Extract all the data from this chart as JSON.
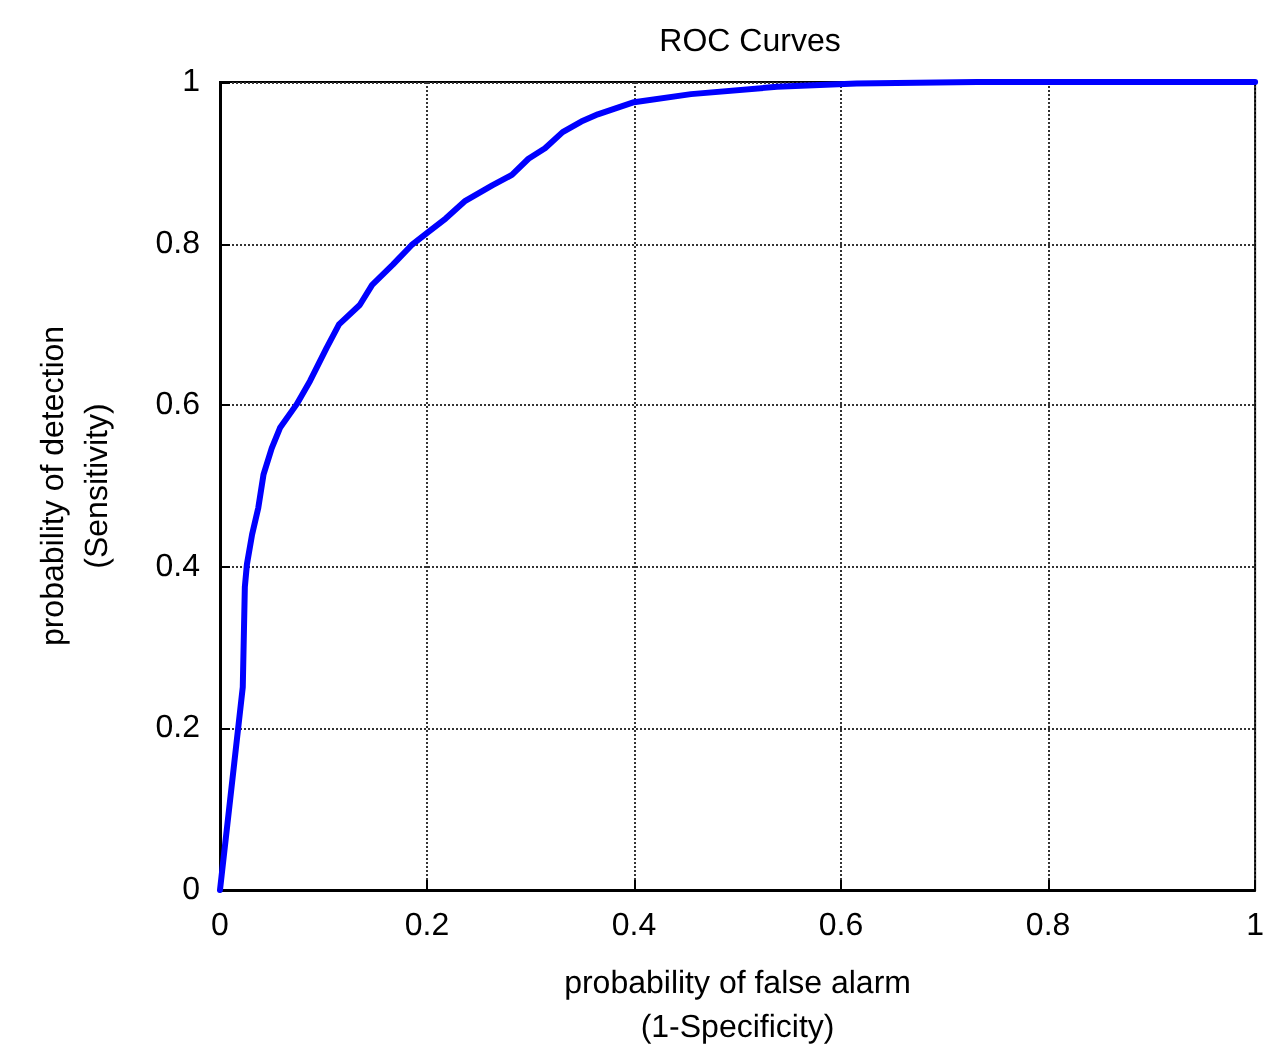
{
  "chart_data": {
    "type": "line",
    "title": "ROC Curves",
    "xlabel": "probability of false alarm\n(1-Specificity)",
    "ylabel": "probability of detection\n(Sensitivity)",
    "x": [
      0,
      0.022,
      0.024,
      0.026,
      0.031,
      0.037,
      0.042,
      0.05,
      0.058,
      0.074,
      0.087,
      0.103,
      0.115,
      0.135,
      0.147,
      0.167,
      0.185,
      0.202,
      0.218,
      0.237,
      0.263,
      0.282,
      0.298,
      0.314,
      0.331,
      0.349,
      0.365,
      0.4,
      0.455,
      0.538,
      0.615,
      0.731,
      1
    ],
    "series": [
      {
        "color": "#0000ff",
        "values": [
          0,
          0.251,
          0.375,
          0.403,
          0.44,
          0.473,
          0.514,
          0.547,
          0.572,
          0.601,
          0.63,
          0.671,
          0.7,
          0.724,
          0.749,
          0.774,
          0.798,
          0.815,
          0.831,
          0.853,
          0.872,
          0.885,
          0.905,
          0.918,
          0.938,
          0.951,
          0.96,
          0.975,
          0.985,
          0.994,
          0.998,
          1,
          1
        ]
      }
    ],
    "xlim": [
      0,
      1
    ],
    "ylim": [
      0,
      1
    ],
    "xticks": [
      0,
      0.2,
      0.4,
      0.6,
      0.8,
      1
    ],
    "yticks": [
      0,
      0.2,
      0.4,
      0.6,
      0.8,
      1
    ],
    "grid": true,
    "marker": "none",
    "line_style": "solid"
  }
}
